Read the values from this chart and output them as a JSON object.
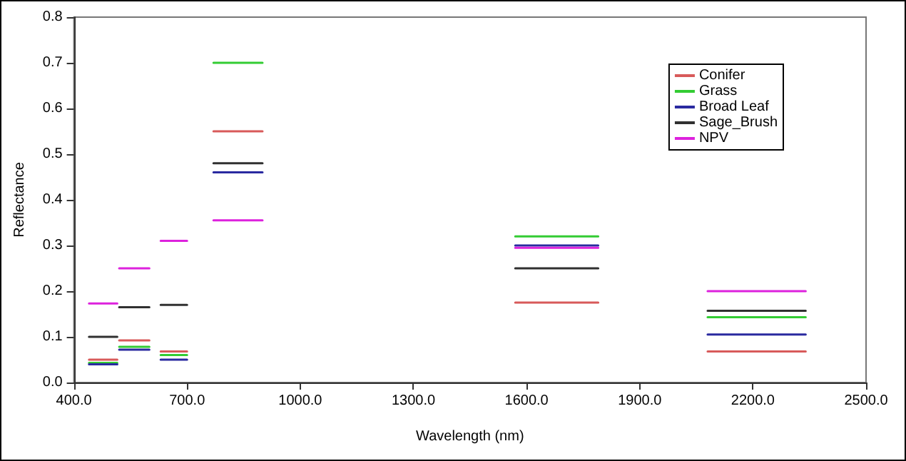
{
  "chart_data": {
    "type": "line",
    "xlabel": "Wavelength (nm)",
    "ylabel": "Reflectance",
    "xlim": [
      400,
      2500
    ],
    "xticks": [
      {
        "value": 400,
        "label": "400.0"
      },
      {
        "value": 700,
        "label": "700.0"
      },
      {
        "value": 1000,
        "label": "1000.0"
      },
      {
        "value": 1300,
        "label": "1300.0"
      },
      {
        "value": 1600,
        "label": "1600.0"
      },
      {
        "value": 1900,
        "label": "1900.0"
      },
      {
        "value": 2200,
        "label": "2200.0"
      },
      {
        "value": 2500,
        "label": "2500.0"
      }
    ],
    "ylim": [
      0,
      0.8
    ],
    "yticks": [
      {
        "value": 0,
        "label": "0.0"
      },
      {
        "value": 0.1,
        "label": "0.1"
      },
      {
        "value": 0.2,
        "label": "0.2"
      },
      {
        "value": 0.3,
        "label": "0.3"
      },
      {
        "value": 0.4,
        "label": "0.4"
      },
      {
        "value": 0.5,
        "label": "0.5"
      },
      {
        "value": 0.6,
        "label": "0.6"
      },
      {
        "value": 0.7,
        "label": "0.7"
      },
      {
        "value": 0.8,
        "label": "0.8"
      }
    ],
    "grid": false,
    "legend": "top right",
    "marker": "none",
    "line_style": "solid",
    "series": [
      {
        "name": "Conifer",
        "color": "#d85a5a",
        "x": [
          440,
          515,
          null,
          520,
          600,
          null,
          630,
          700,
          null,
          770,
          900,
          null,
          1570,
          1790,
          null,
          2080,
          2340
        ],
        "values": [
          0.05,
          0.05,
          null,
          0.092,
          0.092,
          null,
          0.068,
          0.068,
          null,
          0.55,
          0.55,
          null,
          0.175,
          0.175,
          null,
          0.068,
          0.068
        ]
      },
      {
        "name": "Grass",
        "color": "#33cc33",
        "x": [
          440,
          515,
          null,
          520,
          600,
          null,
          630,
          700,
          null,
          770,
          900,
          null,
          1570,
          1790,
          null,
          2080,
          2340
        ],
        "values": [
          0.043,
          0.043,
          null,
          0.078,
          0.078,
          null,
          0.06,
          0.06,
          null,
          0.7,
          0.7,
          null,
          0.32,
          0.32,
          null,
          0.143,
          0.143
        ]
      },
      {
        "name": "Broad Leaf",
        "color": "#2a2aa0",
        "x": [
          440,
          515,
          null,
          520,
          600,
          null,
          630,
          700,
          null,
          770,
          900,
          null,
          1570,
          1790,
          null,
          2080,
          2340
        ],
        "values": [
          0.04,
          0.04,
          null,
          0.072,
          0.072,
          null,
          0.05,
          0.05,
          null,
          0.46,
          0.46,
          null,
          0.3,
          0.3,
          null,
          0.105,
          0.105
        ]
      },
      {
        "name": "Sage_Brush",
        "color": "#303030",
        "x": [
          440,
          515,
          null,
          520,
          600,
          null,
          630,
          700,
          null,
          770,
          900,
          null,
          1570,
          1790,
          null,
          2080,
          2340
        ],
        "values": [
          0.1,
          0.1,
          null,
          0.165,
          0.165,
          null,
          0.17,
          0.17,
          null,
          0.48,
          0.48,
          null,
          0.25,
          0.25,
          null,
          0.157,
          0.157
        ]
      },
      {
        "name": "NPV",
        "color": "#dd22dd",
        "x": [
          440,
          515,
          null,
          520,
          600,
          null,
          630,
          700,
          null,
          770,
          900,
          null,
          1570,
          1790,
          null,
          2080,
          2340
        ],
        "values": [
          0.173,
          0.173,
          null,
          0.25,
          0.25,
          null,
          0.31,
          0.31,
          null,
          0.355,
          0.355,
          null,
          0.295,
          0.295,
          null,
          0.2,
          0.2
        ]
      }
    ]
  }
}
